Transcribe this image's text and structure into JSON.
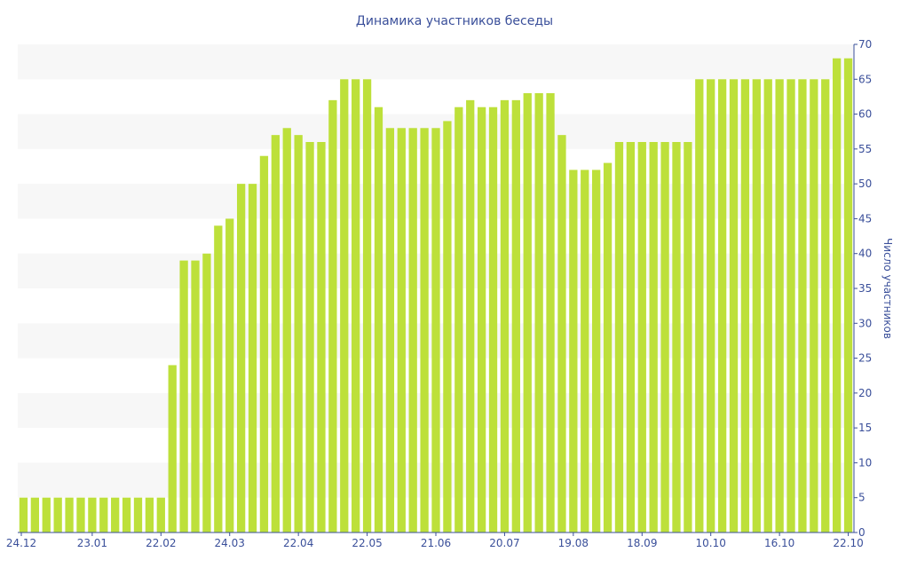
{
  "chart_data": {
    "type": "bar",
    "title": "Динамика участников беседы",
    "xlabel": "",
    "ylabel": "Число участников",
    "ylim": [
      0,
      70
    ],
    "yticks": [
      0,
      5,
      10,
      15,
      20,
      25,
      30,
      35,
      40,
      45,
      50,
      55,
      60,
      65,
      70
    ],
    "y_axis_side": "right",
    "grid": "alternating horizontal bands",
    "bar_color": "#bde03a",
    "band_color": "#f7f7f7",
    "text_color": "#3a4f9a",
    "x_tick_labels": [
      {
        "label": "24.12",
        "index": 0
      },
      {
        "label": "23.01",
        "index": 6
      },
      {
        "label": "22.02",
        "index": 12
      },
      {
        "label": "24.03",
        "index": 18
      },
      {
        "label": "22.04",
        "index": 24
      },
      {
        "label": "22.05",
        "index": 30
      },
      {
        "label": "21.06",
        "index": 36
      },
      {
        "label": "20.07",
        "index": 42
      },
      {
        "label": "19.08",
        "index": 48
      },
      {
        "label": "18.09",
        "index": 54
      },
      {
        "label": "10.10",
        "index": 60
      },
      {
        "label": "16.10",
        "index": 66
      },
      {
        "label": "22.10",
        "index": 72
      }
    ],
    "values": [
      5,
      5,
      5,
      5,
      5,
      5,
      5,
      5,
      5,
      5,
      5,
      5,
      5,
      24,
      39,
      39,
      40,
      44,
      45,
      50,
      50,
      54,
      57,
      58,
      57,
      56,
      56,
      62,
      65,
      65,
      65,
      61,
      58,
      58,
      58,
      58,
      58,
      59,
      61,
      62,
      61,
      61,
      62,
      62,
      63,
      63,
      63,
      57,
      52,
      52,
      52,
      53,
      56,
      56,
      56,
      56,
      56,
      56,
      56,
      65,
      65,
      65,
      65,
      65,
      65,
      65,
      65,
      65,
      65,
      65,
      65,
      68,
      68
    ]
  }
}
